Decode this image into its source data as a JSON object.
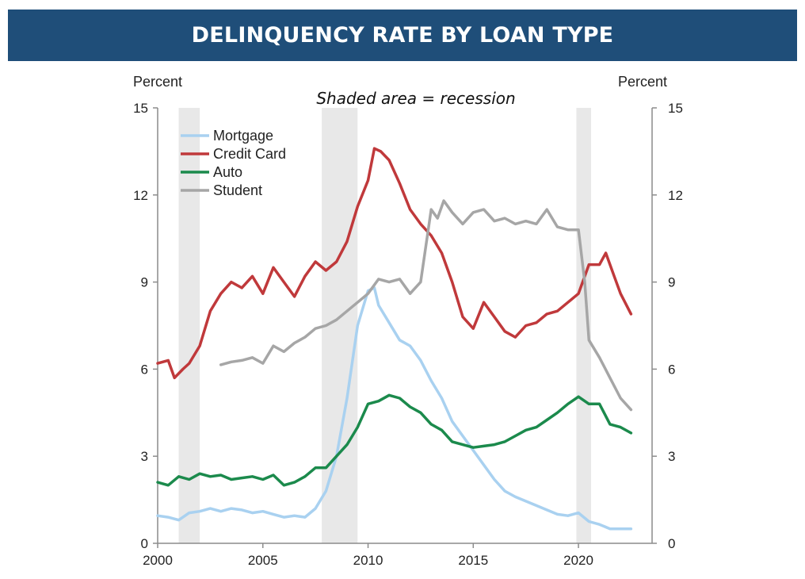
{
  "header": {
    "title": "DELINQUENCY RATE BY LOAN TYPE"
  },
  "chart_data": {
    "type": "line",
    "annotation": "Shaded area = recession",
    "ylabel_left": "Percent",
    "ylabel_right": "Percent",
    "xlim": [
      2000,
      2023.5
    ],
    "ylim": [
      0,
      15
    ],
    "xticks": [
      "2000",
      "2005",
      "2010",
      "2015",
      "2020"
    ],
    "yticks": [
      "0",
      "3",
      "6",
      "9",
      "12",
      "15"
    ],
    "recessions": [
      [
        2001.0,
        2002.0
      ],
      [
        2007.8,
        2009.5
      ],
      [
        2019.9,
        2020.6
      ]
    ],
    "legend_position": "top-left",
    "grid": false,
    "series": [
      {
        "name": "Mortgage",
        "color": "#a9d1f0",
        "points": [
          [
            2000,
            0.95
          ],
          [
            2000.5,
            0.9
          ],
          [
            2001,
            0.8
          ],
          [
            2001.5,
            1.05
          ],
          [
            2002,
            1.1
          ],
          [
            2002.5,
            1.2
          ],
          [
            2003,
            1.1
          ],
          [
            2003.5,
            1.2
          ],
          [
            2004,
            1.15
          ],
          [
            2004.5,
            1.05
          ],
          [
            2005,
            1.1
          ],
          [
            2005.5,
            1.0
          ],
          [
            2006,
            0.9
          ],
          [
            2006.5,
            0.95
          ],
          [
            2007,
            0.9
          ],
          [
            2007.5,
            1.2
          ],
          [
            2008,
            1.8
          ],
          [
            2008.5,
            3.0
          ],
          [
            2009,
            5.0
          ],
          [
            2009.5,
            7.5
          ],
          [
            2010,
            8.7
          ],
          [
            2010.3,
            8.8
          ],
          [
            2010.5,
            8.2
          ],
          [
            2011,
            7.6
          ],
          [
            2011.5,
            7.0
          ],
          [
            2012,
            6.8
          ],
          [
            2012.5,
            6.3
          ],
          [
            2013,
            5.6
          ],
          [
            2013.5,
            5.0
          ],
          [
            2014,
            4.2
          ],
          [
            2014.5,
            3.7
          ],
          [
            2015,
            3.2
          ],
          [
            2015.5,
            2.7
          ],
          [
            2016,
            2.2
          ],
          [
            2016.5,
            1.8
          ],
          [
            2017,
            1.6
          ],
          [
            2017.5,
            1.45
          ],
          [
            2018,
            1.3
          ],
          [
            2018.5,
            1.15
          ],
          [
            2019,
            1.0
          ],
          [
            2019.5,
            0.95
          ],
          [
            2020,
            1.05
          ],
          [
            2020.5,
            0.75
          ],
          [
            2021,
            0.65
          ],
          [
            2021.5,
            0.5
          ],
          [
            2022,
            0.5
          ],
          [
            2022.5,
            0.5
          ]
        ]
      },
      {
        "name": "Credit Card",
        "color": "#c0393b",
        "points": [
          [
            2000,
            6.2
          ],
          [
            2000.5,
            6.3
          ],
          [
            2000.8,
            5.7
          ],
          [
            2001.2,
            6.0
          ],
          [
            2001.5,
            6.2
          ],
          [
            2002,
            6.8
          ],
          [
            2002.5,
            8.0
          ],
          [
            2003,
            8.6
          ],
          [
            2003.5,
            9.0
          ],
          [
            2004,
            8.8
          ],
          [
            2004.5,
            9.2
          ],
          [
            2005,
            8.6
          ],
          [
            2005.5,
            9.5
          ],
          [
            2006,
            9.0
          ],
          [
            2006.5,
            8.5
          ],
          [
            2007,
            9.2
          ],
          [
            2007.5,
            9.7
          ],
          [
            2008,
            9.4
          ],
          [
            2008.5,
            9.7
          ],
          [
            2009,
            10.4
          ],
          [
            2009.5,
            11.6
          ],
          [
            2010,
            12.5
          ],
          [
            2010.3,
            13.6
          ],
          [
            2010.6,
            13.5
          ],
          [
            2011,
            13.2
          ],
          [
            2011.5,
            12.4
          ],
          [
            2012,
            11.5
          ],
          [
            2012.5,
            11.0
          ],
          [
            2013,
            10.6
          ],
          [
            2013.5,
            10.0
          ],
          [
            2014,
            9.0
          ],
          [
            2014.5,
            7.8
          ],
          [
            2015,
            7.4
          ],
          [
            2015.5,
            8.3
          ],
          [
            2016,
            7.8
          ],
          [
            2016.5,
            7.3
          ],
          [
            2017,
            7.1
          ],
          [
            2017.5,
            7.5
          ],
          [
            2018,
            7.6
          ],
          [
            2018.5,
            7.9
          ],
          [
            2019,
            8.0
          ],
          [
            2019.5,
            8.3
          ],
          [
            2020,
            8.6
          ],
          [
            2020.5,
            9.6
          ],
          [
            2021,
            9.6
          ],
          [
            2021.3,
            10.0
          ],
          [
            2021.7,
            9.2
          ],
          [
            2022,
            8.6
          ],
          [
            2022.5,
            7.9
          ]
        ]
      },
      {
        "name": "Auto",
        "color": "#1b8a4c",
        "points": [
          [
            2000,
            2.1
          ],
          [
            2000.5,
            2.0
          ],
          [
            2001,
            2.3
          ],
          [
            2001.5,
            2.2
          ],
          [
            2002,
            2.4
          ],
          [
            2002.5,
            2.3
          ],
          [
            2003,
            2.35
          ],
          [
            2003.5,
            2.2
          ],
          [
            2004,
            2.25
          ],
          [
            2004.5,
            2.3
          ],
          [
            2005,
            2.2
          ],
          [
            2005.5,
            2.35
          ],
          [
            2006,
            2.0
          ],
          [
            2006.5,
            2.1
          ],
          [
            2007,
            2.3
          ],
          [
            2007.5,
            2.6
          ],
          [
            2008,
            2.6
          ],
          [
            2008.5,
            3.0
          ],
          [
            2009,
            3.4
          ],
          [
            2009.5,
            4.0
          ],
          [
            2010,
            4.8
          ],
          [
            2010.5,
            4.9
          ],
          [
            2011,
            5.1
          ],
          [
            2011.5,
            5.0
          ],
          [
            2012,
            4.7
          ],
          [
            2012.5,
            4.5
          ],
          [
            2013,
            4.1
          ],
          [
            2013.5,
            3.9
          ],
          [
            2014,
            3.5
          ],
          [
            2014.5,
            3.4
          ],
          [
            2015,
            3.3
          ],
          [
            2015.5,
            3.35
          ],
          [
            2016,
            3.4
          ],
          [
            2016.5,
            3.5
          ],
          [
            2017,
            3.7
          ],
          [
            2017.5,
            3.9
          ],
          [
            2018,
            4.0
          ],
          [
            2018.5,
            4.25
          ],
          [
            2019,
            4.5
          ],
          [
            2019.5,
            4.8
          ],
          [
            2020,
            5.05
          ],
          [
            2020.5,
            4.8
          ],
          [
            2021,
            4.8
          ],
          [
            2021.5,
            4.1
          ],
          [
            2022,
            4.0
          ],
          [
            2022.5,
            3.8
          ]
        ]
      },
      {
        "name": "Student",
        "color": "#a6a6a6",
        "points": [
          [
            2003,
            6.15
          ],
          [
            2003.5,
            6.25
          ],
          [
            2004,
            6.3
          ],
          [
            2004.5,
            6.4
          ],
          [
            2005,
            6.2
          ],
          [
            2005.5,
            6.8
          ],
          [
            2006,
            6.6
          ],
          [
            2006.5,
            6.9
          ],
          [
            2007,
            7.1
          ],
          [
            2007.5,
            7.4
          ],
          [
            2008,
            7.5
          ],
          [
            2008.5,
            7.7
          ],
          [
            2009,
            8.0
          ],
          [
            2009.5,
            8.3
          ],
          [
            2010,
            8.6
          ],
          [
            2010.5,
            9.1
          ],
          [
            2011,
            9.0
          ],
          [
            2011.5,
            9.1
          ],
          [
            2012,
            8.6
          ],
          [
            2012.5,
            9.0
          ],
          [
            2013,
            11.5
          ],
          [
            2013.3,
            11.2
          ],
          [
            2013.6,
            11.8
          ],
          [
            2014,
            11.4
          ],
          [
            2014.5,
            11.0
          ],
          [
            2015,
            11.4
          ],
          [
            2015.5,
            11.5
          ],
          [
            2016,
            11.1
          ],
          [
            2016.5,
            11.2
          ],
          [
            2017,
            11.0
          ],
          [
            2017.5,
            11.1
          ],
          [
            2018,
            11.0
          ],
          [
            2018.5,
            11.5
          ],
          [
            2019,
            10.9
          ],
          [
            2019.5,
            10.8
          ],
          [
            2020,
            10.8
          ],
          [
            2020.3,
            9.0
          ],
          [
            2020.5,
            7.0
          ],
          [
            2021,
            6.4
          ],
          [
            2021.5,
            5.7
          ],
          [
            2022,
            5.0
          ],
          [
            2022.5,
            4.6
          ]
        ]
      }
    ]
  }
}
